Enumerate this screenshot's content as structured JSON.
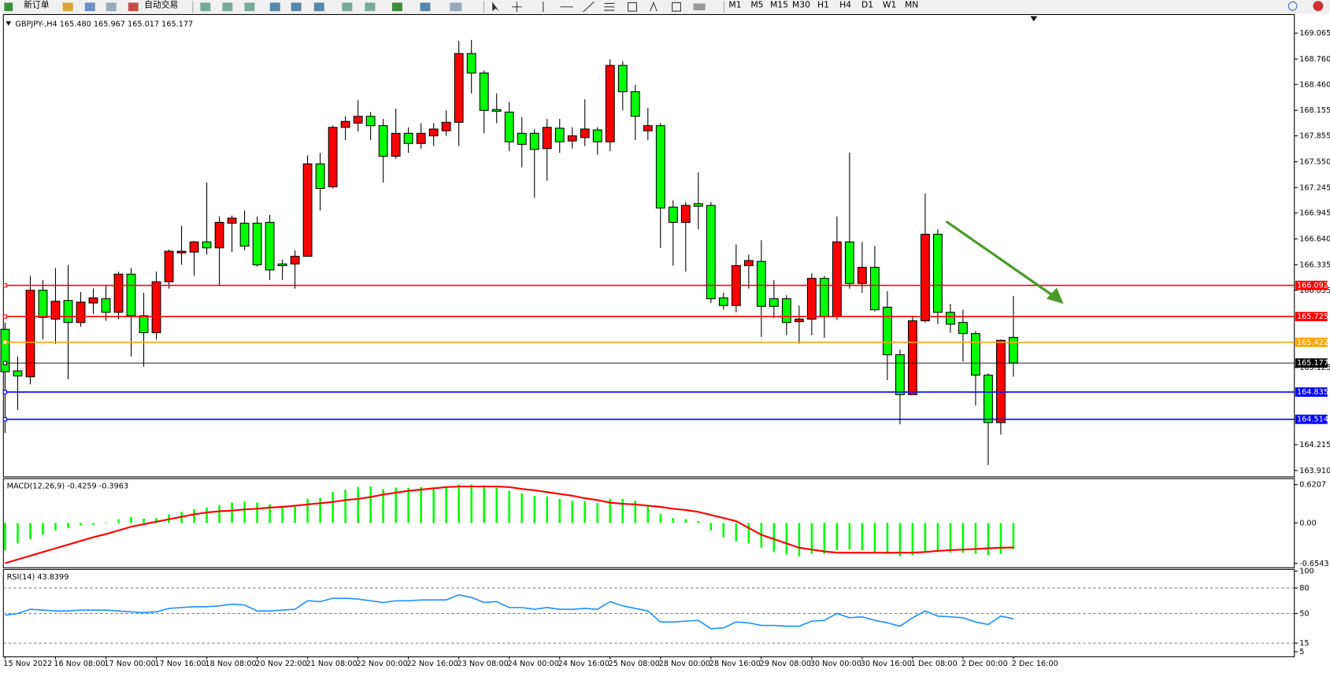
{
  "toolbar": {
    "new_order": "新订单",
    "auto_trading": "自动交易",
    "timeframes": [
      "M1",
      "M5",
      "M15",
      "M30",
      "H1",
      "H4",
      "D1",
      "W1",
      "MN"
    ]
  },
  "chart_data": [
    {
      "type": "candlestick",
      "title": "GBPJPY-,H4  165.480 165.967 165.017 165.177",
      "categories": [
        "15 Nov 2022",
        null,
        null,
        null,
        "16 Nov 08:00",
        null,
        null,
        null,
        "17 Nov 00:00",
        null,
        null,
        null,
        "17 Nov 16:00",
        null,
        null,
        null,
        "18 Nov 08:00",
        null,
        null,
        null,
        "20 Nov 22:00",
        null,
        null,
        null,
        "21 Nov 08:00",
        null,
        null,
        null,
        "22 Nov 00:00",
        null,
        null,
        null,
        "22 Nov 16:00",
        null,
        null,
        null,
        "23 Nov 08:00",
        null,
        null,
        null,
        "24 Nov 00:00",
        null,
        null,
        null,
        "24 Nov 16:00",
        null,
        null,
        null,
        "25 Nov 08:00",
        null,
        null,
        null,
        "28 Nov 00:00",
        null,
        null,
        null,
        "28 Nov 16:00",
        null,
        null,
        null,
        "29 Nov 08:00",
        null,
        null,
        null,
        "30 Nov 00:00",
        null,
        null,
        null,
        "30 Nov 16:00",
        null,
        null,
        null,
        "1 Dec 08:00",
        null,
        null,
        null,
        "2 Dec 00:00",
        null,
        null,
        null,
        "2 Dec 16:00"
      ],
      "open": [
        165.575,
        165.085,
        165.015,
        166.035,
        165.695,
        165.915,
        165.655,
        165.885,
        165.935,
        165.775,
        166.225,
        165.735,
        165.535,
        166.135,
        166.475,
        166.485,
        166.605,
        166.535,
        166.825,
        166.825,
        166.825,
        166.835,
        166.345,
        166.345,
        166.435,
        167.525,
        167.255,
        167.955,
        168.005,
        168.085,
        167.975,
        167.615,
        167.885,
        167.765,
        167.855,
        167.915,
        168.015,
        168.825,
        168.595,
        168.165,
        168.135,
        167.885,
        167.885,
        167.705,
        167.945,
        167.795,
        167.835,
        167.925,
        167.785,
        168.685,
        168.375,
        167.915,
        167.975,
        167.015,
        166.835,
        167.055,
        167.035,
        165.945,
        165.855,
        166.325,
        166.375,
        165.935,
        165.935,
        165.665,
        165.695,
        166.175,
        165.725,
        166.605,
        166.115,
        166.305,
        165.835,
        165.275,
        164.805,
        165.675,
        166.695,
        165.775,
        165.655,
        165.525,
        165.035,
        164.475,
        165.48
      ],
      "high": [
        165.655,
        165.255,
        166.205,
        166.155,
        166.295,
        166.335,
        166.015,
        166.055,
        166.095,
        166.255,
        166.295,
        166.005,
        166.255,
        166.515,
        166.795,
        166.615,
        167.305,
        166.905,
        166.915,
        166.975,
        166.905,
        166.925,
        166.395,
        166.505,
        167.625,
        167.655,
        167.975,
        168.085,
        168.275,
        168.135,
        168.055,
        168.175,
        167.955,
        168.005,
        168.005,
        168.155,
        168.975,
        168.985,
        168.625,
        168.355,
        168.255,
        168.075,
        167.935,
        168.055,
        168.055,
        167.955,
        168.285,
        167.955,
        168.755,
        168.735,
        168.455,
        168.185,
        168.005,
        167.095,
        167.075,
        167.425,
        167.075,
        166.005,
        166.575,
        166.455,
        166.625,
        166.155,
        165.975,
        165.855,
        166.235,
        166.205,
        166.905,
        167.655,
        166.605,
        166.555,
        166.025,
        165.335,
        165.735,
        167.175,
        166.755,
        165.875,
        165.805,
        165.555,
        165.055,
        165.455,
        165.967
      ],
      "low": [
        164.355,
        164.625,
        164.925,
        165.455,
        165.405,
        164.985,
        165.605,
        165.755,
        165.675,
        165.695,
        165.255,
        165.135,
        165.455,
        166.055,
        166.335,
        166.205,
        166.455,
        166.085,
        166.485,
        166.505,
        166.315,
        166.155,
        166.155,
        166.055,
        166.435,
        166.975,
        167.235,
        167.805,
        167.905,
        167.805,
        167.305,
        167.585,
        167.655,
        167.705,
        167.735,
        167.855,
        167.735,
        168.355,
        167.885,
        168.005,
        167.675,
        167.485,
        167.125,
        167.325,
        167.655,
        167.705,
        167.735,
        167.635,
        167.675,
        168.155,
        167.805,
        167.805,
        166.535,
        166.325,
        166.255,
        166.755,
        165.885,
        165.805,
        165.775,
        166.055,
        165.485,
        165.705,
        165.505,
        165.405,
        165.505,
        165.475,
        165.685,
        166.055,
        166.005,
        165.785,
        164.975,
        164.455,
        164.805,
        165.655,
        165.635,
        165.535,
        165.195,
        164.675,
        163.975,
        164.335,
        165.017
      ],
      "close": [
        165.075,
        165.025,
        166.035,
        165.715,
        165.905,
        165.655,
        165.895,
        165.945,
        165.775,
        166.225,
        165.735,
        165.535,
        166.135,
        166.495,
        166.495,
        166.605,
        166.535,
        166.835,
        166.885,
        166.555,
        166.335,
        166.275,
        166.325,
        166.435,
        167.525,
        167.235,
        167.955,
        168.025,
        168.085,
        167.975,
        167.615,
        167.885,
        167.765,
        167.885,
        167.935,
        168.015,
        168.825,
        168.595,
        168.155,
        168.145,
        167.785,
        167.755,
        167.695,
        167.955,
        167.785,
        167.855,
        167.935,
        167.785,
        168.685,
        168.375,
        168.085,
        167.975,
        167.005,
        166.835,
        167.035,
        167.025,
        165.935,
        165.855,
        166.325,
        166.385,
        165.845,
        165.845,
        165.655,
        165.695,
        166.175,
        165.725,
        166.605,
        166.115,
        166.305,
        165.805,
        165.275,
        164.805,
        165.675,
        166.695,
        165.775,
        165.635,
        165.525,
        165.035,
        164.475,
        165.445,
        165.177
      ],
      "up_color": "#ff0000",
      "down_color": "#00ff00",
      "ylim": [
        163.835,
        169.285
      ],
      "yticks": [
        169.065,
        {
          "value": 168.76,
          "label": "168.760"
        },
        {
          "value": 168.46,
          "label": "168.460"
        },
        168.155,
        167.855,
        {
          "value": 167.55,
          "label": "167.550"
        },
        167.245,
        166.945,
        {
          "value": 166.64,
          "label": "166.640"
        },
        166.335,
        166.035,
        165.125,
        164.215,
        {
          "value": 163.91,
          "label": "163.910"
        }
      ],
      "levels": [
        {
          "value": 166.092,
          "color": "#ff0000"
        },
        {
          "value": 165.725,
          "color": "#ff0000"
        },
        {
          "value": 165.422,
          "color": "#ffa500"
        },
        {
          "value": 165.177,
          "color": "#000000"
        },
        {
          "value": 164.835,
          "color": "#0000ff"
        },
        {
          "value": 164.514,
          "color": "#0000ff"
        }
      ]
    },
    {
      "type": "macd",
      "title": "MACD(12,26,9) -0.4259 -0.3963",
      "series": [
        {
          "type": "bar",
          "color": "#00ff00",
          "values": [
            -0.44,
            -0.33,
            -0.26,
            -0.19,
            -0.12,
            -0.08,
            -0.04,
            -0.03,
            0.01,
            0.06,
            0.1,
            0.07,
            0.08,
            0.14,
            0.18,
            0.22,
            0.25,
            0.29,
            0.33,
            0.35,
            0.33,
            0.3,
            0.28,
            0.28,
            0.39,
            0.41,
            0.5,
            0.54,
            0.58,
            0.59,
            0.55,
            0.57,
            0.57,
            0.58,
            0.58,
            0.59,
            0.62,
            0.62,
            0.59,
            0.57,
            0.52,
            0.48,
            0.44,
            0.43,
            0.39,
            0.36,
            0.35,
            0.32,
            0.39,
            0.39,
            0.36,
            0.29,
            0.15,
            0.08,
            0.06,
            0.03,
            -0.12,
            -0.23,
            -0.3,
            -0.33,
            -0.4,
            -0.47,
            -0.51,
            -0.54,
            -0.5,
            -0.5,
            -0.44,
            -0.43,
            -0.44,
            -0.47,
            -0.5,
            -0.54,
            -0.52,
            -0.47,
            -0.47,
            -0.48,
            -0.48,
            -0.5,
            -0.52,
            -0.5,
            -0.4259
          ]
        },
        {
          "type": "line",
          "color": "#ff0000",
          "values": [
            -0.65,
            -0.59,
            -0.53,
            -0.47,
            -0.41,
            -0.35,
            -0.29,
            -0.23,
            -0.18,
            -0.12,
            -0.06,
            -0.02,
            0.02,
            0.06,
            0.1,
            0.14,
            0.17,
            0.19,
            0.2,
            0.22,
            0.23,
            0.25,
            0.26,
            0.28,
            0.3,
            0.32,
            0.34,
            0.37,
            0.39,
            0.42,
            0.46,
            0.49,
            0.52,
            0.54,
            0.56,
            0.58,
            0.59,
            0.59,
            0.59,
            0.59,
            0.58,
            0.55,
            0.53,
            0.5,
            0.47,
            0.44,
            0.4,
            0.37,
            0.33,
            0.31,
            0.3,
            0.28,
            0.26,
            0.23,
            0.21,
            0.18,
            0.13,
            0.08,
            0.03,
            -0.08,
            -0.19,
            -0.26,
            -0.33,
            -0.4,
            -0.43,
            -0.46,
            -0.48,
            -0.48,
            -0.48,
            -0.48,
            -0.48,
            -0.48,
            -0.48,
            -0.47,
            -0.45,
            -0.44,
            -0.43,
            -0.42,
            -0.41,
            -0.4,
            -0.3963
          ]
        }
      ],
      "ylim": [
        -0.723,
        0.704
      ],
      "yticks": [
        0.6207,
        {
          "value": 0,
          "label": "0.00"
        },
        -0.6543
      ]
    },
    {
      "type": "line",
      "title": "RSI(14) 43.8399",
      "color": "#1e90ff",
      "values": [
        48,
        50,
        55,
        54,
        53,
        53,
        54,
        54,
        54,
        53,
        52,
        51,
        52,
        56,
        57,
        58,
        58,
        59,
        61,
        60,
        53,
        53,
        54,
        55,
        65,
        64,
        68,
        68,
        67,
        65,
        63,
        65,
        65,
        66,
        66,
        66,
        72,
        69,
        63,
        64,
        57,
        57,
        55,
        57,
        55,
        55,
        56,
        55,
        64,
        59,
        56,
        53,
        40,
        40,
        41,
        42,
        32,
        33,
        40,
        39,
        36,
        36,
        35,
        35,
        41,
        42,
        50,
        45,
        46,
        42,
        39,
        35,
        45,
        53,
        47,
        46,
        45,
        40,
        37,
        47,
        43.8399
      ],
      "ylim": [
        0,
        100
      ],
      "yticks": [
        100,
        80,
        50,
        15,
        5
      ],
      "levels": [
        80,
        50,
        15
      ]
    }
  ]
}
